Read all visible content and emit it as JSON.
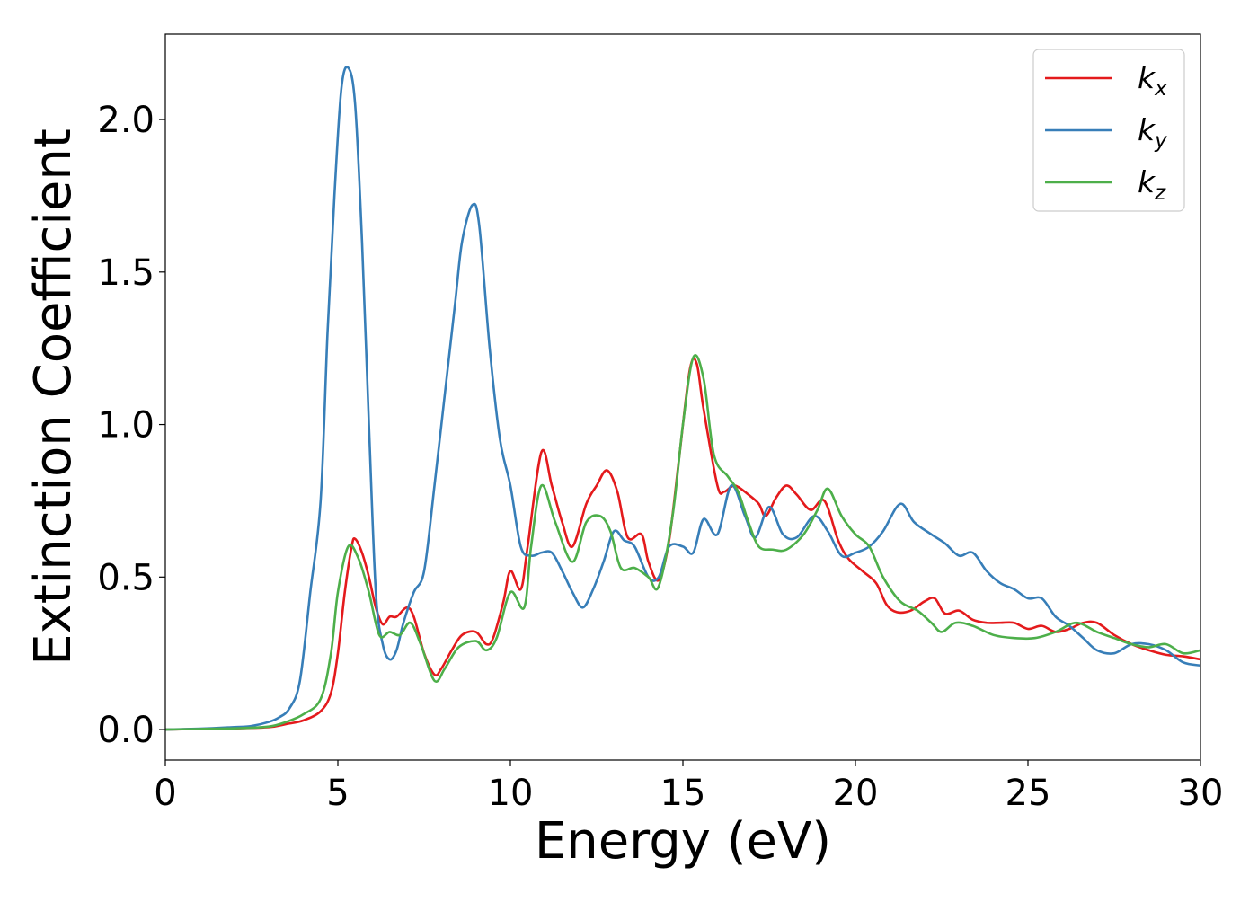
{
  "chart_data": {
    "type": "line",
    "title": "",
    "xlabel": "Energy (eV)",
    "ylabel": "Extinction Coefficient",
    "xlim": [
      0,
      30
    ],
    "ylim": [
      -0.1,
      2.28
    ],
    "xticks": [
      "0",
      "5",
      "10",
      "15",
      "20",
      "25",
      "30"
    ],
    "yticks": [
      "0.0",
      "0.5",
      "1.0",
      "1.5",
      "2.0"
    ],
    "xtick_values": [
      0,
      5,
      10,
      15,
      20,
      25,
      30
    ],
    "ytick_values": [
      0,
      0.5,
      1.0,
      1.5,
      2.0
    ],
    "grid": false,
    "legend_position": "top-right",
    "series": [
      {
        "name": "k_x",
        "base": "k",
        "sub": "x",
        "color": "#e41a1c",
        "points": [
          [
            0,
            0
          ],
          [
            1,
            0.002
          ],
          [
            2,
            0.004
          ],
          [
            3,
            0.008
          ],
          [
            3.5,
            0.018
          ],
          [
            4,
            0.03
          ],
          [
            4.5,
            0.06
          ],
          [
            4.8,
            0.12
          ],
          [
            5.0,
            0.25
          ],
          [
            5.2,
            0.45
          ],
          [
            5.4,
            0.6
          ],
          [
            5.5,
            0.625
          ],
          [
            5.7,
            0.58
          ],
          [
            5.9,
            0.5
          ],
          [
            6.1,
            0.4
          ],
          [
            6.3,
            0.345
          ],
          [
            6.5,
            0.37
          ],
          [
            6.7,
            0.37
          ],
          [
            7.0,
            0.4
          ],
          [
            7.2,
            0.37
          ],
          [
            7.5,
            0.25
          ],
          [
            7.8,
            0.18
          ],
          [
            8.0,
            0.2
          ],
          [
            8.3,
            0.26
          ],
          [
            8.6,
            0.31
          ],
          [
            9.0,
            0.32
          ],
          [
            9.3,
            0.28
          ],
          [
            9.5,
            0.3
          ],
          [
            9.8,
            0.42
          ],
          [
            10.0,
            0.52
          ],
          [
            10.3,
            0.46
          ],
          [
            10.5,
            0.6
          ],
          [
            10.9,
            0.91
          ],
          [
            11.2,
            0.8
          ],
          [
            11.5,
            0.68
          ],
          [
            11.8,
            0.6
          ],
          [
            12.2,
            0.74
          ],
          [
            12.5,
            0.8
          ],
          [
            12.8,
            0.85
          ],
          [
            13.1,
            0.78
          ],
          [
            13.4,
            0.63
          ],
          [
            13.8,
            0.64
          ],
          [
            14.0,
            0.55
          ],
          [
            14.3,
            0.49
          ],
          [
            14.6,
            0.62
          ],
          [
            14.9,
            0.9
          ],
          [
            15.2,
            1.18
          ],
          [
            15.4,
            1.2
          ],
          [
            15.6,
            1.05
          ],
          [
            16.0,
            0.8
          ],
          [
            16.2,
            0.78
          ],
          [
            16.5,
            0.8
          ],
          [
            16.9,
            0.77
          ],
          [
            17.2,
            0.74
          ],
          [
            17.4,
            0.7
          ],
          [
            17.7,
            0.76
          ],
          [
            18.0,
            0.8
          ],
          [
            18.3,
            0.77
          ],
          [
            18.7,
            0.72
          ],
          [
            19.1,
            0.75
          ],
          [
            19.5,
            0.62
          ],
          [
            19.8,
            0.56
          ],
          [
            20.2,
            0.52
          ],
          [
            20.6,
            0.48
          ],
          [
            20.9,
            0.41
          ],
          [
            21.2,
            0.385
          ],
          [
            21.6,
            0.39
          ],
          [
            22.0,
            0.42
          ],
          [
            22.3,
            0.43
          ],
          [
            22.6,
            0.38
          ],
          [
            23.0,
            0.39
          ],
          [
            23.4,
            0.36
          ],
          [
            23.8,
            0.35
          ],
          [
            24.2,
            0.35
          ],
          [
            24.6,
            0.35
          ],
          [
            25.0,
            0.33
          ],
          [
            25.4,
            0.34
          ],
          [
            25.8,
            0.32
          ],
          [
            26.2,
            0.33
          ],
          [
            26.6,
            0.35
          ],
          [
            27.0,
            0.35
          ],
          [
            27.5,
            0.31
          ],
          [
            28.0,
            0.28
          ],
          [
            28.5,
            0.26
          ],
          [
            29.0,
            0.245
          ],
          [
            29.5,
            0.24
          ],
          [
            30.0,
            0.23
          ]
        ]
      },
      {
        "name": "k_y",
        "base": "k",
        "sub": "y",
        "color": "#377eb8",
        "points": [
          [
            0,
            0
          ],
          [
            1,
            0.003
          ],
          [
            2,
            0.008
          ],
          [
            2.5,
            0.012
          ],
          [
            3,
            0.025
          ],
          [
            3.3,
            0.04
          ],
          [
            3.6,
            0.07
          ],
          [
            3.9,
            0.16
          ],
          [
            4.2,
            0.45
          ],
          [
            4.5,
            0.75
          ],
          [
            4.7,
            1.3
          ],
          [
            4.9,
            1.75
          ],
          [
            5.1,
            2.1
          ],
          [
            5.3,
            2.17
          ],
          [
            5.5,
            2.05
          ],
          [
            5.7,
            1.6
          ],
          [
            5.9,
            1.0
          ],
          [
            6.1,
            0.45
          ],
          [
            6.3,
            0.28
          ],
          [
            6.5,
            0.23
          ],
          [
            6.7,
            0.26
          ],
          [
            6.9,
            0.35
          ],
          [
            7.2,
            0.45
          ],
          [
            7.5,
            0.52
          ],
          [
            7.8,
            0.8
          ],
          [
            8.1,
            1.1
          ],
          [
            8.4,
            1.4
          ],
          [
            8.6,
            1.6
          ],
          [
            8.9,
            1.72
          ],
          [
            9.1,
            1.65
          ],
          [
            9.4,
            1.25
          ],
          [
            9.7,
            0.95
          ],
          [
            10.0,
            0.8
          ],
          [
            10.3,
            0.6
          ],
          [
            10.6,
            0.57
          ],
          [
            10.9,
            0.58
          ],
          [
            11.2,
            0.58
          ],
          [
            11.5,
            0.52
          ],
          [
            11.8,
            0.45
          ],
          [
            12.1,
            0.4
          ],
          [
            12.4,
            0.46
          ],
          [
            12.7,
            0.55
          ],
          [
            13.0,
            0.65
          ],
          [
            13.3,
            0.62
          ],
          [
            13.6,
            0.6
          ],
          [
            14.0,
            0.5
          ],
          [
            14.3,
            0.5
          ],
          [
            14.6,
            0.6
          ],
          [
            15.0,
            0.6
          ],
          [
            15.3,
            0.58
          ],
          [
            15.6,
            0.69
          ],
          [
            16.0,
            0.64
          ],
          [
            16.4,
            0.8
          ],
          [
            16.8,
            0.7
          ],
          [
            17.1,
            0.63
          ],
          [
            17.5,
            0.73
          ],
          [
            17.9,
            0.64
          ],
          [
            18.3,
            0.63
          ],
          [
            18.8,
            0.7
          ],
          [
            19.2,
            0.65
          ],
          [
            19.6,
            0.57
          ],
          [
            20.0,
            0.58
          ],
          [
            20.4,
            0.6
          ],
          [
            20.8,
            0.65
          ],
          [
            21.3,
            0.74
          ],
          [
            21.7,
            0.68
          ],
          [
            22.2,
            0.64
          ],
          [
            22.6,
            0.61
          ],
          [
            23.0,
            0.57
          ],
          [
            23.4,
            0.58
          ],
          [
            23.8,
            0.52
          ],
          [
            24.2,
            0.48
          ],
          [
            24.6,
            0.46
          ],
          [
            25.0,
            0.43
          ],
          [
            25.4,
            0.43
          ],
          [
            25.8,
            0.37
          ],
          [
            26.2,
            0.34
          ],
          [
            26.6,
            0.3
          ],
          [
            27.0,
            0.26
          ],
          [
            27.5,
            0.25
          ],
          [
            28.0,
            0.28
          ],
          [
            28.5,
            0.28
          ],
          [
            29.0,
            0.26
          ],
          [
            29.5,
            0.22
          ],
          [
            30.0,
            0.21
          ]
        ]
      },
      {
        "name": "k_z",
        "base": "k",
        "sub": "z",
        "color": "#4daf4a",
        "points": [
          [
            0,
            0
          ],
          [
            1,
            0.002
          ],
          [
            2,
            0.004
          ],
          [
            3,
            0.01
          ],
          [
            3.5,
            0.025
          ],
          [
            4,
            0.05
          ],
          [
            4.5,
            0.1
          ],
          [
            4.8,
            0.25
          ],
          [
            5.0,
            0.45
          ],
          [
            5.3,
            0.6
          ],
          [
            5.6,
            0.56
          ],
          [
            5.9,
            0.45
          ],
          [
            6.2,
            0.31
          ],
          [
            6.5,
            0.32
          ],
          [
            6.8,
            0.31
          ],
          [
            7.1,
            0.35
          ],
          [
            7.4,
            0.28
          ],
          [
            7.8,
            0.16
          ],
          [
            8.1,
            0.2
          ],
          [
            8.5,
            0.27
          ],
          [
            9.0,
            0.29
          ],
          [
            9.3,
            0.26
          ],
          [
            9.6,
            0.3
          ],
          [
            10.0,
            0.45
          ],
          [
            10.4,
            0.4
          ],
          [
            10.6,
            0.6
          ],
          [
            10.9,
            0.8
          ],
          [
            11.3,
            0.68
          ],
          [
            11.8,
            0.55
          ],
          [
            12.2,
            0.68
          ],
          [
            12.6,
            0.7
          ],
          [
            12.9,
            0.65
          ],
          [
            13.2,
            0.53
          ],
          [
            13.6,
            0.53
          ],
          [
            14.0,
            0.5
          ],
          [
            14.3,
            0.47
          ],
          [
            14.7,
            0.7
          ],
          [
            15.0,
            1.0
          ],
          [
            15.3,
            1.22
          ],
          [
            15.6,
            1.15
          ],
          [
            15.9,
            0.9
          ],
          [
            16.3,
            0.83
          ],
          [
            16.6,
            0.78
          ],
          [
            16.9,
            0.68
          ],
          [
            17.2,
            0.6
          ],
          [
            17.6,
            0.59
          ],
          [
            18.0,
            0.59
          ],
          [
            18.5,
            0.64
          ],
          [
            18.9,
            0.72
          ],
          [
            19.2,
            0.79
          ],
          [
            19.6,
            0.7
          ],
          [
            20.0,
            0.64
          ],
          [
            20.4,
            0.6
          ],
          [
            20.8,
            0.5
          ],
          [
            21.3,
            0.42
          ],
          [
            21.8,
            0.39
          ],
          [
            22.2,
            0.35
          ],
          [
            22.5,
            0.32
          ],
          [
            22.9,
            0.35
          ],
          [
            23.4,
            0.34
          ],
          [
            24.0,
            0.31
          ],
          [
            24.6,
            0.3
          ],
          [
            25.2,
            0.3
          ],
          [
            25.8,
            0.32
          ],
          [
            26.4,
            0.35
          ],
          [
            27.0,
            0.32
          ],
          [
            27.5,
            0.3
          ],
          [
            28.0,
            0.28
          ],
          [
            28.5,
            0.27
          ],
          [
            29.0,
            0.28
          ],
          [
            29.5,
            0.25
          ],
          [
            30.0,
            0.26
          ]
        ]
      }
    ]
  }
}
